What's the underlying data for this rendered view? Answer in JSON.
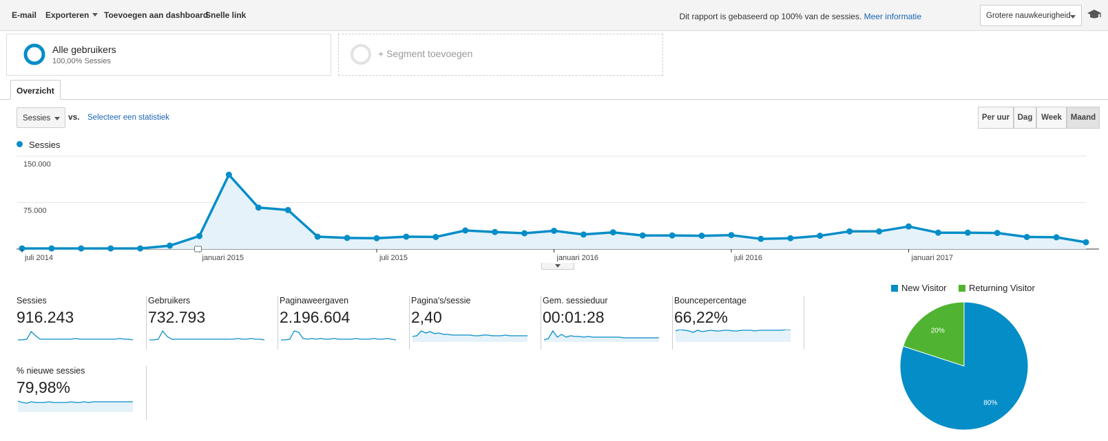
{
  "toolbar": {
    "email": "E-mail",
    "export": "Exporteren",
    "add_dashboard": "Toevoegen aan dashboard",
    "shortcut": "Snelle link",
    "report_note": "Dit rapport is gebaseerd op 100% van de sessies.",
    "more_info": "Meer informatie",
    "precision": "Grotere nauwkeurigheid",
    "icon": "graduation-cap-icon"
  },
  "segments": {
    "active_title": "Alle gebruikers",
    "active_sub": "100,00% Sessies",
    "add_label": "+ Segment toevoegen"
  },
  "tabs": {
    "overview": "Overzicht"
  },
  "controls": {
    "metric": "Sessies",
    "vs": "vs.",
    "select_stat": "Selecteer een statistiek",
    "granularity": [
      "Per uur",
      "Dag",
      "Week",
      "Maand"
    ],
    "active_granularity": "Maand"
  },
  "chart_data": {
    "type": "area",
    "series": [
      {
        "name": "Sessies",
        "color": "#058dc7",
        "values": [
          1000,
          1000,
          1000,
          1000,
          1000,
          5500,
          21000,
          120000,
          67000,
          63000,
          20000,
          18000,
          17500,
          20000,
          19500,
          30000,
          27500,
          25500,
          29500,
          23500,
          27000,
          22000,
          22000,
          21500,
          22500,
          16500,
          17500,
          21500,
          28500,
          28500,
          36500,
          26500,
          26500,
          26000,
          19500,
          19000,
          11000
        ]
      }
    ],
    "x_tick_labels": [
      "juli 2014",
      "januari 2015",
      "juli 2015",
      "januari 2016",
      "juli 2016",
      "januari 2017"
    ],
    "y_tick_labels": [
      "150.000",
      "75.000"
    ],
    "ylim": [
      0,
      150000
    ],
    "grid": true,
    "legend": "top-left"
  },
  "cards": [
    {
      "label": "Sessies",
      "value": "916.243",
      "spark": [
        2,
        2,
        3,
        14,
        8,
        3,
        3,
        3,
        3,
        3,
        3,
        3,
        3,
        4,
        3,
        3,
        3,
        3,
        3,
        3,
        3,
        3,
        3,
        4,
        3,
        3,
        2
      ],
      "fill": false
    },
    {
      "label": "Gebruikers",
      "value": "732.793",
      "spark": [
        2,
        2,
        3,
        15,
        7,
        3,
        3,
        3,
        3,
        3,
        3,
        3,
        3,
        3,
        3,
        3,
        3,
        3,
        3,
        3,
        4,
        3,
        3,
        4,
        3,
        3,
        2
      ],
      "fill": false
    },
    {
      "label": "Paginaweergaven",
      "value": "2.196.604",
      "spark": [
        2,
        2,
        3,
        15,
        13,
        4,
        3,
        4,
        3,
        4,
        3,
        3,
        4,
        3,
        3,
        3,
        3,
        4,
        3,
        3,
        3,
        4,
        3,
        3,
        4,
        3,
        2
      ],
      "fill": false
    },
    {
      "label": "Pagina's/sessie",
      "value": "2,40",
      "spark": [
        7,
        8,
        15,
        12,
        14,
        11,
        12,
        10,
        10,
        9,
        9,
        9,
        9,
        9,
        8,
        8,
        9,
        9,
        8,
        8,
        8,
        9,
        8,
        8,
        8,
        8,
        8
      ],
      "fill": true
    },
    {
      "label": "Gem. sessieduur",
      "value": "00:01:28",
      "spark": [
        2,
        4,
        15,
        6,
        10,
        6,
        8,
        7,
        7,
        6,
        7,
        6,
        6,
        6,
        6,
        6,
        6,
        6,
        5,
        5,
        5,
        5,
        5,
        5,
        5,
        5,
        5
      ],
      "fill": true
    },
    {
      "label": "Bouncepercentage",
      "value": "66,22%",
      "spark": [
        15,
        17,
        16,
        15,
        13,
        16,
        14,
        15,
        16,
        15,
        15,
        16,
        16,
        15,
        15,
        16,
        16,
        16,
        15,
        16,
        16,
        16,
        16,
        16,
        16,
        17,
        17
      ],
      "fill": true
    },
    {
      "label": "% nieuwe sessies",
      "value": "79,98%",
      "spark": [
        15,
        13,
        12,
        14,
        13,
        13,
        13,
        14,
        13,
        13,
        13,
        13,
        14,
        13,
        13,
        14,
        13,
        14,
        14,
        14,
        14,
        14,
        14,
        14,
        14,
        14,
        14
      ],
      "fill": true
    }
  ],
  "pie": {
    "legend": [
      {
        "name": "New Visitor",
        "color": "#058dc7"
      },
      {
        "name": "Returning Visitor",
        "color": "#50b432"
      }
    ],
    "slices": [
      {
        "name": "New Visitor",
        "value": 80,
        "label": "80%"
      },
      {
        "name": "Returning Visitor",
        "value": 20,
        "label": "20%"
      }
    ]
  }
}
